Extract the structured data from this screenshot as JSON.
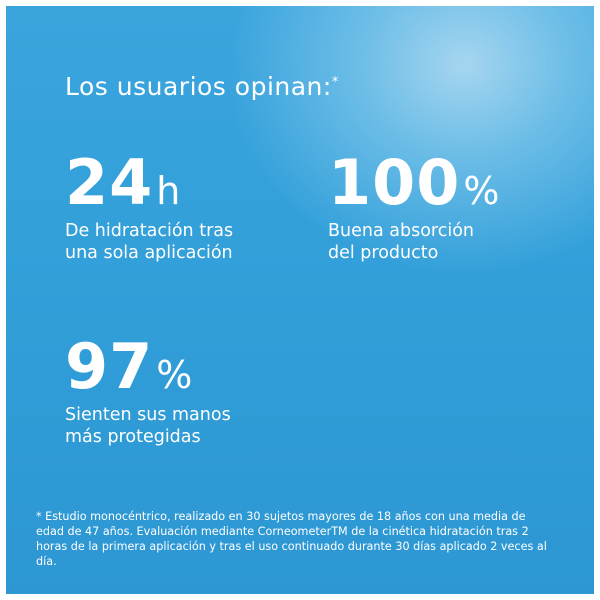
{
  "title": {
    "text": "Los usuarios opinan:",
    "marker": "*"
  },
  "stats": [
    {
      "number": "24",
      "unit": "h",
      "description": "De hidratación tras\nuna sola aplicación"
    },
    {
      "number": "100",
      "unit": "%",
      "description": "Buena absorción\ndel producto"
    },
    {
      "number": "97",
      "unit": "%",
      "description": "Sienten sus manos\nmás protegidas"
    }
  ],
  "footnote": "* Estudio monocéntrico, realizado en 30 sujetos mayores de 18 años con una media de edad de 47 años. Evaluación mediante CorneometerTM de la cinética hidratación tras 2 horas de la primera aplicación y tras el uso continuado durante 30 días aplicado 2 veces al día.",
  "colors": {
    "background": "#33a0da",
    "text": "#ffffff"
  }
}
